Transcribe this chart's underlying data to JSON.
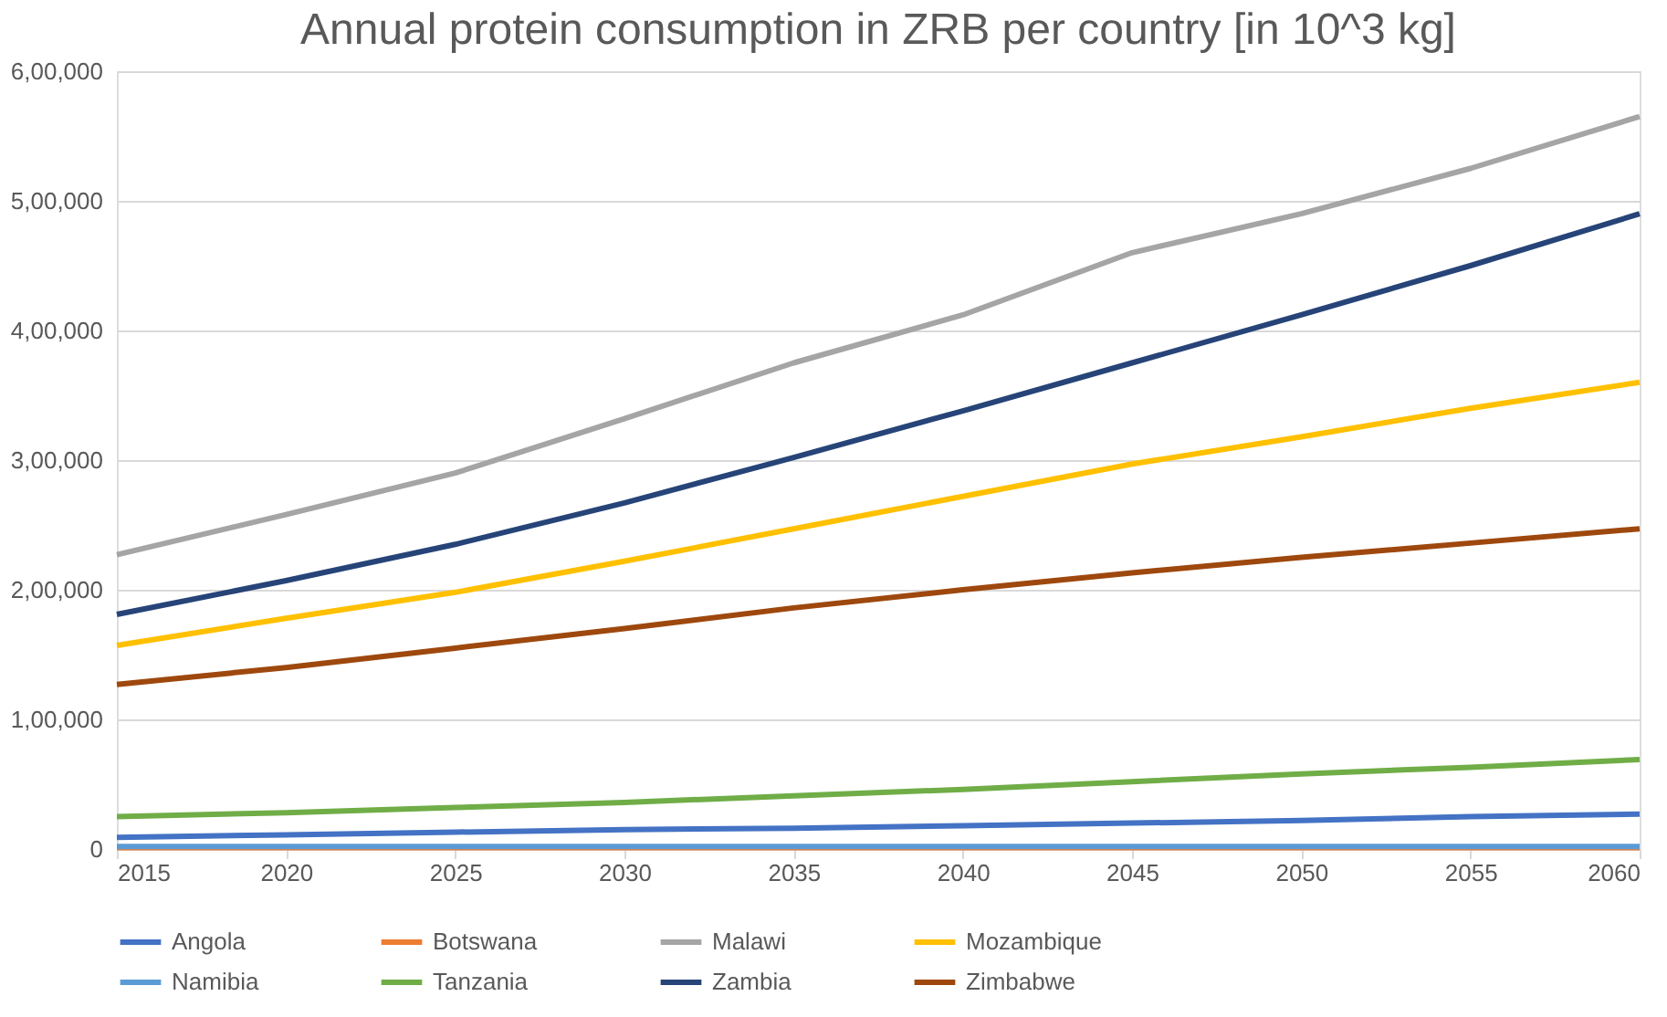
{
  "chart_data": {
    "type": "line",
    "title": "Annual protein consumption in ZRB per country [in 10^3 kg]",
    "x": [
      2015,
      2020,
      2025,
      2030,
      2035,
      2040,
      2045,
      2050,
      2055,
      2060
    ],
    "xlim": [
      2015,
      2060
    ],
    "xticks": [
      2015,
      2020,
      2025,
      2030,
      2035,
      2040,
      2045,
      2050,
      2055,
      2060
    ],
    "ylim": [
      0,
      600000
    ],
    "yticks": [
      {
        "value": 0,
        "label": "0"
      },
      {
        "value": 100000,
        "label": "1,00,000"
      },
      {
        "value": 200000,
        "label": "2,00,000"
      },
      {
        "value": 300000,
        "label": "3,00,000"
      },
      {
        "value": 400000,
        "label": "4,00,000"
      },
      {
        "value": 500000,
        "label": "5,00,000"
      },
      {
        "value": 600000,
        "label": "6,00,000"
      }
    ],
    "grid": "y",
    "legend": "bottom",
    "marker": "none",
    "line_style": "solid",
    "series": [
      {
        "name": "Angola",
        "color": "#4472c4",
        "values": [
          9000,
          11000,
          13000,
          15000,
          16000,
          18000,
          20000,
          22000,
          25000,
          27000
        ]
      },
      {
        "name": "Botswana",
        "color": "#ed7d31",
        "values": [
          1000,
          1000,
          1000,
          1000,
          1000,
          1000,
          1000,
          1000,
          1000,
          1000
        ]
      },
      {
        "name": "Malawi",
        "color": "#a5a5a5",
        "values": [
          227000,
          258000,
          290000,
          332000,
          375000,
          412000,
          460000,
          490000,
          525000,
          565000
        ]
      },
      {
        "name": "Mozambique",
        "color": "#ffc000",
        "values": [
          157000,
          178000,
          198000,
          222000,
          247000,
          272000,
          297000,
          318000,
          340000,
          360000
        ]
      },
      {
        "name": "Namibia",
        "color": "#5b9bd5",
        "values": [
          2000,
          2000,
          2000,
          2000,
          2000,
          2000,
          2000,
          2000,
          2000,
          2000
        ]
      },
      {
        "name": "Tanzania",
        "color": "#70ad47",
        "values": [
          25000,
          28000,
          32000,
          36000,
          41000,
          46000,
          52000,
          58000,
          63000,
          69000
        ]
      },
      {
        "name": "Zambia",
        "color": "#264478",
        "values": [
          181000,
          207000,
          235000,
          267000,
          302000,
          338000,
          375000,
          412000,
          450000,
          490000
        ]
      },
      {
        "name": "Zimbabwe",
        "color": "#9e480e",
        "values": [
          127000,
          140000,
          155000,
          170000,
          186000,
          200000,
          213000,
          225000,
          236000,
          247000
        ]
      }
    ]
  }
}
